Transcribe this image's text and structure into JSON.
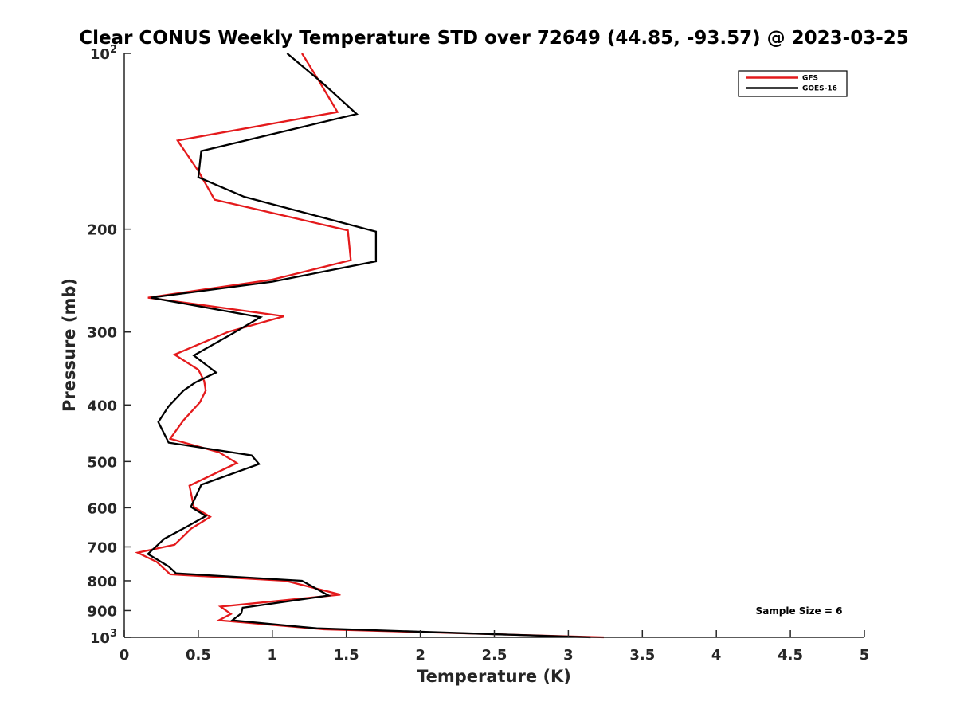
{
  "chart_data": {
    "type": "line",
    "title": "Clear CONUS Weekly Temperature STD over 72649 (44.85, -93.57) @ 2023-03-25",
    "xlabel": "Temperature (K)",
    "ylabel": "Pressure (mb)",
    "xlim": [
      0,
      5
    ],
    "ylim": [
      100,
      1000
    ],
    "yscale": "log",
    "y_reversed": true,
    "x_ticks": [
      "0",
      "0.5",
      "1",
      "1.5",
      "2",
      "2.5",
      "3",
      "3.5",
      "4",
      "4.5",
      "5"
    ],
    "y_ticks": [
      {
        "value": 100,
        "base": "10",
        "exp": "2"
      },
      {
        "value": 200,
        "label": "200"
      },
      {
        "value": 300,
        "label": "300"
      },
      {
        "value": 400,
        "label": "400"
      },
      {
        "value": 500,
        "label": "500"
      },
      {
        "value": 600,
        "label": "600"
      },
      {
        "value": 700,
        "label": "700"
      },
      {
        "value": 800,
        "label": "800"
      },
      {
        "value": 900,
        "label": "900"
      },
      {
        "value": 1000,
        "base": "10",
        "exp": "3"
      }
    ],
    "grid": false,
    "legend_position": "top-right",
    "annotation": "Sample Size = 6",
    "series": [
      {
        "name": "GFS",
        "color": "#e41a1c",
        "points": [
          [
            1.2,
            100
          ],
          [
            1.32,
            112
          ],
          [
            1.44,
            126
          ],
          [
            0.36,
            141
          ],
          [
            0.5,
            159
          ],
          [
            0.61,
            178
          ],
          [
            1.51,
            201
          ],
          [
            1.53,
            226
          ],
          [
            1.0,
            244
          ],
          [
            0.16,
            262
          ],
          [
            1.08,
            282
          ],
          [
            0.7,
            300
          ],
          [
            0.34,
            328
          ],
          [
            0.5,
            348
          ],
          [
            0.54,
            364
          ],
          [
            0.55,
            378
          ],
          [
            0.51,
            396
          ],
          [
            0.4,
            425
          ],
          [
            0.31,
            457
          ],
          [
            0.64,
            482
          ],
          [
            0.76,
            503
          ],
          [
            0.44,
            550
          ],
          [
            0.47,
            598
          ],
          [
            0.58,
            622
          ],
          [
            0.45,
            652
          ],
          [
            0.34,
            694
          ],
          [
            0.09,
            716
          ],
          [
            0.22,
            743
          ],
          [
            0.31,
            780
          ],
          [
            1.09,
            800
          ],
          [
            1.46,
            845
          ],
          [
            0.65,
            886
          ],
          [
            0.72,
            912
          ],
          [
            0.64,
            935
          ],
          [
            1.35,
            969
          ],
          [
            3.24,
            1000
          ]
        ]
      },
      {
        "name": "GOES-16",
        "color": "#000000",
        "points": [
          [
            1.1,
            100
          ],
          [
            1.35,
            113
          ],
          [
            1.57,
            127
          ],
          [
            0.52,
            147
          ],
          [
            0.5,
            163
          ],
          [
            0.81,
            176
          ],
          [
            1.7,
            202
          ],
          [
            1.7,
            227
          ],
          [
            1.0,
            246
          ],
          [
            0.18,
            262
          ],
          [
            0.92,
            283
          ],
          [
            0.7,
            305
          ],
          [
            0.47,
            329
          ],
          [
            0.62,
            352
          ],
          [
            0.48,
            366
          ],
          [
            0.4,
            378
          ],
          [
            0.3,
            402
          ],
          [
            0.23,
            428
          ],
          [
            0.3,
            464
          ],
          [
            0.86,
            488
          ],
          [
            0.91,
            505
          ],
          [
            0.52,
            548
          ],
          [
            0.45,
            598
          ],
          [
            0.55,
            620
          ],
          [
            0.42,
            647
          ],
          [
            0.27,
            678
          ],
          [
            0.16,
            720
          ],
          [
            0.3,
            756
          ],
          [
            0.35,
            777
          ],
          [
            1.2,
            800
          ],
          [
            1.38,
            848
          ],
          [
            0.8,
            890
          ],
          [
            0.79,
            910
          ],
          [
            0.73,
            935
          ],
          [
            1.3,
            965
          ],
          [
            3.15,
            1000
          ]
        ]
      }
    ]
  }
}
